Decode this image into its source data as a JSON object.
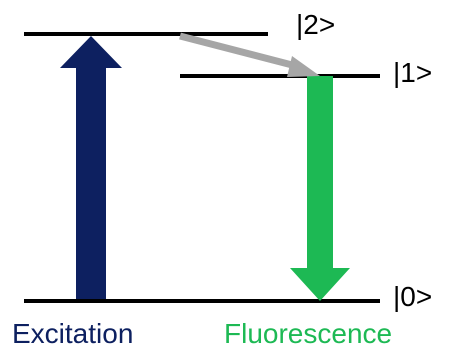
{
  "levels": {
    "level2_label": "|2>",
    "level1_label": "|1>",
    "level0_label": "|0>"
  },
  "labels": {
    "excitation": "Excitation",
    "fluorescence": "Fluorescence"
  },
  "colors": {
    "excitation": "#0d2060",
    "fluorescence": "#1db954",
    "relaxation": "#a6a6a6",
    "level_line": "#000000"
  }
}
